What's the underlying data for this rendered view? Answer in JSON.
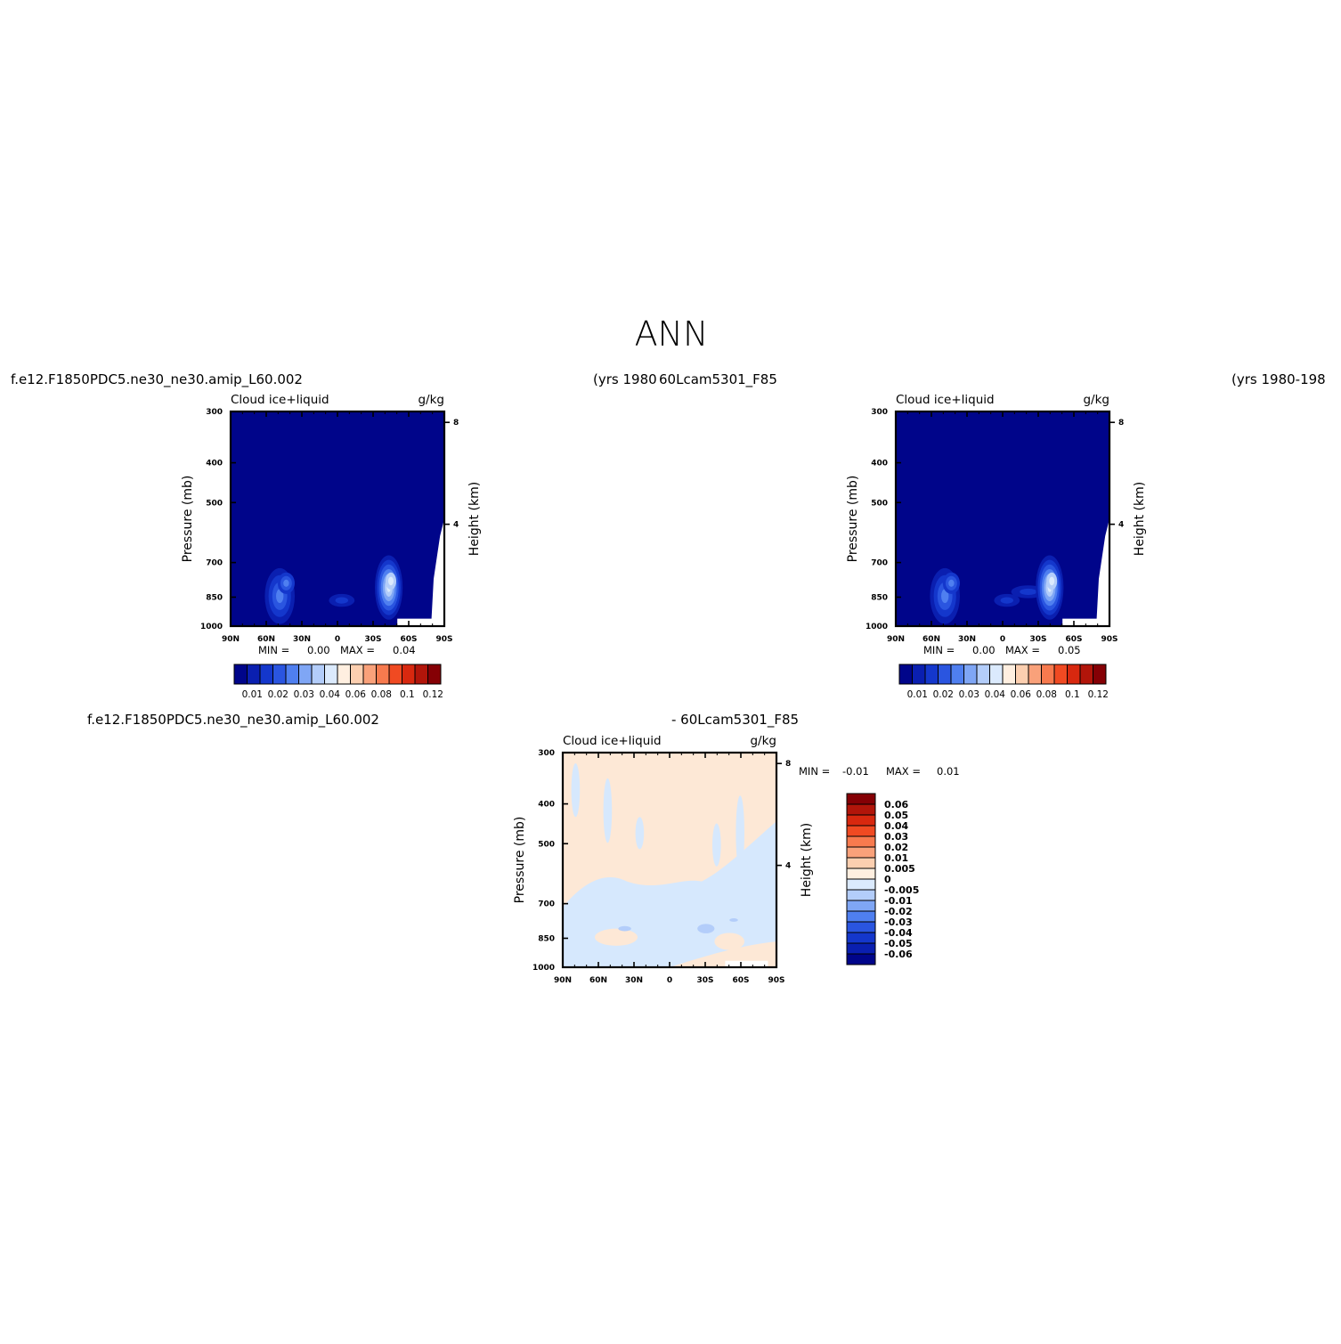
{
  "page_title": "ANN",
  "panel_top_left": {
    "case_label": "f.e12.F1850PDC5.ne30_ne30.amip_L60.002",
    "years_label": "(yrs 1980",
    "title_left": "Cloud  ice+liquid",
    "title_right": "g/kg",
    "min_label": "MIN =",
    "min_value": "0.00",
    "max_label": "MAX =",
    "max_value": "0.04"
  },
  "panel_top_right": {
    "case_label": "60Lcam5301_F85",
    "years_label": "(yrs 1980-198",
    "title_left": "Cloud  ice+liquid",
    "title_right": "g/kg",
    "min_label": "MIN =",
    "min_value": "0.00",
    "max_label": "MAX =",
    "max_value": "0.05"
  },
  "panel_diff": {
    "case_label_left": "f.e12.F1850PDC5.ne30_ne30.amip_L60.002",
    "case_label_right": "- 60Lcam5301_F85",
    "title_left": "Cloud  ice+liquid",
    "title_right": "g/kg",
    "min_label": "MIN =",
    "min_value": "-0.01",
    "max_label": "MAX =",
    "max_value": "0.01"
  },
  "chart_data": [
    {
      "type": "heatmap",
      "title": "Cloud  ice+liquid",
      "units": "g/kg",
      "xlabel": "",
      "ylabel": "Pressure (mb)",
      "y2label": "Height (km)",
      "x_ticks": [
        "90N",
        "60N",
        "30N",
        "0",
        "30S",
        "60S",
        "90S"
      ],
      "y_ticks": [
        "300",
        "400",
        "500",
        "700",
        "850",
        "1000"
      ],
      "y2_ticks": [
        "8",
        "4"
      ],
      "ylim": [
        1000,
        300
      ],
      "colorbar": [
        "0.01",
        "0.02",
        "0.03",
        "0.04",
        "0.06",
        "0.08",
        "0.1",
        "0.12"
      ],
      "min": 0.0,
      "max": 0.04
    },
    {
      "type": "heatmap",
      "title": "Cloud  ice+liquid",
      "units": "g/kg",
      "xlabel": "",
      "ylabel": "Pressure (mb)",
      "y2label": "Height (km)",
      "x_ticks": [
        "90N",
        "60N",
        "30N",
        "0",
        "30S",
        "60S",
        "90S"
      ],
      "y_ticks": [
        "300",
        "400",
        "500",
        "700",
        "850",
        "1000"
      ],
      "y2_ticks": [
        "8",
        "4"
      ],
      "ylim": [
        1000,
        300
      ],
      "colorbar": [
        "0.01",
        "0.02",
        "0.03",
        "0.04",
        "0.06",
        "0.08",
        "0.1",
        "0.12"
      ],
      "min": 0.0,
      "max": 0.05
    },
    {
      "type": "heatmap",
      "title": "Cloud  ice+liquid",
      "units": "g/kg",
      "xlabel": "",
      "ylabel": "Pressure (mb)",
      "y2label": "Height (km)",
      "x_ticks": [
        "90N",
        "60N",
        "30N",
        "0",
        "30S",
        "60S",
        "90S"
      ],
      "y_ticks": [
        "300",
        "400",
        "500",
        "700",
        "850",
        "1000"
      ],
      "y2_ticks": [
        "8",
        "4"
      ],
      "ylim": [
        1000,
        300
      ],
      "colorbar": [
        "0.06",
        "0.05",
        "0.04",
        "0.03",
        "0.02",
        "0.01",
        "0.005",
        "0",
        "-0.005",
        "-0.01",
        "-0.02",
        "-0.03",
        "-0.04",
        "-0.05",
        "-0.06"
      ],
      "min": -0.01,
      "max": 0.01
    }
  ],
  "colors": {
    "abs_scale": [
      "#00058a",
      "#0a1fb0",
      "#1437cc",
      "#2a55e0",
      "#4f7ff0",
      "#7fa6f5",
      "#b3cdfa",
      "#dbeafd",
      "#ffefe0",
      "#fccfb0",
      "#f9a17a",
      "#f77a4e",
      "#f04a22",
      "#d8280f",
      "#b2150a",
      "#850005"
    ],
    "diff_scale": [
      "#850005",
      "#b2150a",
      "#d8280f",
      "#f04a22",
      "#f77a4e",
      "#f9a17a",
      "#fccfb0",
      "#ffefe0",
      "#dbeafd",
      "#b3cdfa",
      "#7fa6f5",
      "#4f7ff0",
      "#2a55e0",
      "#1437cc",
      "#0a1fb0",
      "#00058a"
    ],
    "abs_fill": "#00058a",
    "diff_neutral": "#fde8d6",
    "diff_blue": "#d6e8fd",
    "diff_blue2": "#b3cdfa"
  }
}
